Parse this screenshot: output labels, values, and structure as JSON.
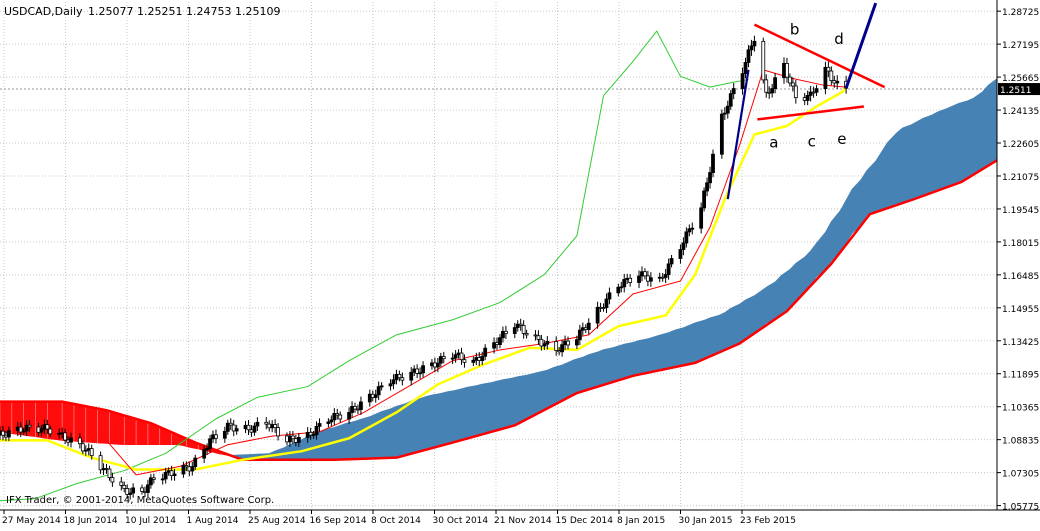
{
  "header": {
    "symbol": "USDCAD,Daily",
    "ohlc": "1.25077 1.25251 1.24753 1.25109"
  },
  "copyright": "IFX Trader, © 2001-2014, MetaQuotes Software Corp.",
  "colors": {
    "candle": "#000000",
    "kijun": "#ffff00",
    "tenkan": "#ff0000",
    "chikou": "#33cc33",
    "cloud_bull": "#4682b4",
    "cloud_bear": "#ff0000",
    "senkou_b": "#ff0000",
    "triangle": "#ff0000",
    "breakout": "#00008b",
    "axis_tag": "#000000"
  },
  "chart_data": {
    "type": "candlestick",
    "instrument": "USDCAD",
    "timeframe": "Daily",
    "last_price": 1.25109,
    "ylim": [
      1.0557,
      1.2915
    ],
    "y_ticks": [
      "1.28725",
      "1.27195",
      "1.25665",
      "1.24135",
      "1.22605",
      "1.21075",
      "1.19545",
      "1.18015",
      "1.16485",
      "1.14955",
      "1.13425",
      "1.11895",
      "1.10365",
      "1.08835",
      "1.07305",
      "1.05775"
    ],
    "x_ticks": [
      "27 May 2014",
      "18 Jun 2014",
      "10 Jul 2014",
      "1 Aug 2014",
      "25 Aug 2014",
      "16 Sep 2014",
      "8 Oct 2014",
      "30 Oct 2014",
      "21 Nov 2014",
      "15 Dec 2014",
      "8 Jan 2015",
      "30 Jan 2015",
      "23 Feb 2015"
    ],
    "x_range": [
      "2014-05-20",
      "2015-04-22"
    ],
    "close_path": [
      [
        "2014-05-20",
        1.0905
      ],
      [
        "2014-05-28",
        1.0935
      ],
      [
        "2014-06-05",
        1.0935
      ],
      [
        "2014-06-12",
        1.0885
      ],
      [
        "2014-06-18",
        1.084
      ],
      [
        "2014-06-25",
        1.073
      ],
      [
        "2014-07-01",
        1.0645
      ],
      [
        "2014-07-07",
        1.064
      ],
      [
        "2014-07-11",
        1.0705
      ],
      [
        "2014-07-17",
        1.073
      ],
      [
        "2014-07-24",
        1.076
      ],
      [
        "2014-07-30",
        1.088
      ],
      [
        "2014-08-05",
        1.0945
      ],
      [
        "2014-08-12",
        1.093
      ],
      [
        "2014-08-18",
        1.0965
      ],
      [
        "2014-08-25",
        1.088
      ],
      [
        "2014-09-01",
        1.09
      ],
      [
        "2014-09-08",
        1.098
      ],
      [
        "2014-09-15",
        1.101
      ],
      [
        "2014-09-22",
        1.108
      ],
      [
        "2014-09-29",
        1.116
      ],
      [
        "2014-10-06",
        1.119
      ],
      [
        "2014-10-13",
        1.123
      ],
      [
        "2014-10-20",
        1.128
      ],
      [
        "2014-10-27",
        1.124
      ],
      [
        "2014-11-03",
        1.133
      ],
      [
        "2014-11-10",
        1.142
      ],
      [
        "2014-11-17",
        1.135
      ],
      [
        "2014-11-24",
        1.13
      ],
      [
        "2014-12-01",
        1.136
      ],
      [
        "2014-12-08",
        1.148
      ],
      [
        "2014-12-15",
        1.16
      ],
      [
        "2014-12-22",
        1.165
      ],
      [
        "2014-12-29",
        1.162
      ],
      [
        "2015-01-05",
        1.178
      ],
      [
        "2015-01-12",
        1.196
      ],
      [
        "2015-01-19",
        1.238
      ],
      [
        "2015-01-26",
        1.26
      ],
      [
        "2015-01-30",
        1.275
      ],
      [
        "2015-02-03",
        1.248
      ],
      [
        "2015-02-09",
        1.262
      ],
      [
        "2015-02-13",
        1.247
      ],
      [
        "2015-02-18",
        1.248
      ],
      [
        "2015-02-23",
        1.26
      ],
      [
        "2015-02-27",
        1.253
      ],
      [
        "2015-03-02",
        1.2511
      ]
    ],
    "candle_range_pct": 0.0045,
    "tenkan_path": [
      [
        "2014-06-25",
        1.088
      ],
      [
        "2014-07-05",
        1.072
      ],
      [
        "2014-07-20",
        1.076
      ],
      [
        "2014-08-05",
        1.086
      ],
      [
        "2014-08-20",
        1.09
      ],
      [
        "2014-09-05",
        1.092
      ],
      [
        "2014-09-20",
        1.101
      ],
      [
        "2014-10-05",
        1.113
      ],
      [
        "2014-10-20",
        1.125
      ],
      [
        "2014-11-05",
        1.13
      ],
      [
        "2014-11-20",
        1.133
      ],
      [
        "2014-12-05",
        1.137
      ],
      [
        "2014-12-20",
        1.156
      ],
      [
        "2015-01-05",
        1.162
      ],
      [
        "2015-01-15",
        1.187
      ],
      [
        "2015-01-25",
        1.225
      ],
      [
        "2015-02-02",
        1.26
      ],
      [
        "2015-02-12",
        1.256
      ],
      [
        "2015-02-22",
        1.253
      ],
      [
        "2015-03-02",
        1.252
      ]
    ],
    "kijun_path": [
      [
        "2014-05-20",
        1.088
      ],
      [
        "2014-06-05",
        1.088
      ],
      [
        "2014-06-20",
        1.08
      ],
      [
        "2014-07-05",
        1.0745
      ],
      [
        "2014-07-25",
        1.0745
      ],
      [
        "2014-08-10",
        1.079
      ],
      [
        "2014-08-30",
        1.083
      ],
      [
        "2014-09-15",
        1.089
      ],
      [
        "2014-10-01",
        1.101
      ],
      [
        "2014-10-15",
        1.114
      ],
      [
        "2014-10-30",
        1.123
      ],
      [
        "2014-11-15",
        1.131
      ],
      [
        "2014-12-01",
        1.13
      ],
      [
        "2014-12-15",
        1.141
      ],
      [
        "2014-12-31",
        1.146
      ],
      [
        "2015-01-10",
        1.165
      ],
      [
        "2015-01-20",
        1.2
      ],
      [
        "2015-01-30",
        1.23
      ],
      [
        "2015-02-10",
        1.234
      ],
      [
        "2015-02-20",
        1.243
      ],
      [
        "2015-03-01",
        1.25
      ],
      [
        "2015-03-02",
        1.253
      ]
    ],
    "chikou_path": [
      [
        "2014-05-20",
        1.06
      ],
      [
        "2014-06-01",
        1.061
      ],
      [
        "2014-06-15",
        1.068
      ],
      [
        "2014-07-01",
        1.074
      ],
      [
        "2014-07-15",
        1.082
      ],
      [
        "2014-08-01",
        1.098
      ],
      [
        "2014-08-15",
        1.108
      ],
      [
        "2014-09-01",
        1.113
      ],
      [
        "2014-09-15",
        1.125
      ],
      [
        "2014-10-01",
        1.137
      ],
      [
        "2014-10-20",
        1.144
      ],
      [
        "2014-11-05",
        1.152
      ],
      [
        "2014-11-20",
        1.165
      ],
      [
        "2014-12-01",
        1.183
      ],
      [
        "2014-12-10",
        1.248
      ],
      [
        "2014-12-20",
        1.264
      ],
      [
        "2014-12-28",
        1.278
      ],
      [
        "2015-01-05",
        1.257
      ],
      [
        "2015-01-15",
        1.252
      ],
      [
        "2015-01-22",
        1.254
      ],
      [
        "2015-01-28",
        1.2555
      ]
    ],
    "senkou_a_path": [
      [
        "2014-05-20",
        1.092
      ],
      [
        "2014-06-10",
        1.088
      ],
      [
        "2014-07-01",
        1.086
      ],
      [
        "2014-07-20",
        1.086
      ],
      [
        "2014-08-05",
        1.081
      ],
      [
        "2014-08-20",
        1.082
      ],
      [
        "2014-09-05",
        1.092
      ],
      [
        "2014-09-20",
        1.098
      ],
      [
        "2014-10-10",
        1.108
      ],
      [
        "2014-10-30",
        1.114
      ],
      [
        "2014-11-20",
        1.12
      ],
      [
        "2014-12-10",
        1.13
      ],
      [
        "2014-12-30",
        1.137
      ],
      [
        "2015-01-20",
        1.147
      ],
      [
        "2015-02-05",
        1.16
      ],
      [
        "2015-02-20",
        1.178
      ],
      [
        "2015-03-05",
        1.205
      ],
      [
        "2015-03-20",
        1.232
      ],
      [
        "2015-04-05",
        1.242
      ],
      [
        "2015-04-15",
        1.247
      ],
      [
        "2015-04-22",
        1.256
      ]
    ],
    "senkou_b_path": [
      [
        "2014-05-20",
        1.106
      ],
      [
        "2014-06-10",
        1.106
      ],
      [
        "2014-06-25",
        1.102
      ],
      [
        "2014-07-10",
        1.096
      ],
      [
        "2014-07-25",
        1.087
      ],
      [
        "2014-08-10",
        1.079
      ],
      [
        "2014-08-25",
        1.079
      ],
      [
        "2014-09-10",
        1.079
      ],
      [
        "2014-10-01",
        1.08
      ],
      [
        "2014-10-20",
        1.087
      ],
      [
        "2014-11-10",
        1.095
      ],
      [
        "2014-12-01",
        1.11
      ],
      [
        "2014-12-20",
        1.118
      ],
      [
        "2015-01-10",
        1.124
      ],
      [
        "2015-01-25",
        1.133
      ],
      [
        "2015-02-10",
        1.148
      ],
      [
        "2015-02-25",
        1.17
      ],
      [
        "2015-03-10",
        1.193
      ],
      [
        "2015-03-25",
        1.2
      ],
      [
        "2015-04-10",
        1.208
      ],
      [
        "2015-04-22",
        1.218
      ]
    ],
    "triangle": {
      "upper": [
        [
          "2015-01-30",
          1.281
        ],
        [
          "2015-03-15",
          1.252
        ]
      ],
      "lower": [
        [
          "2015-01-31",
          1.237
        ],
        [
          "2015-03-08",
          1.243
        ]
      ],
      "breakout": [
        [
          "2015-03-02",
          1.2515
        ],
        [
          "2015-03-12",
          1.291
        ]
      ]
    },
    "wave_labels": [
      {
        "text": "a",
        "x": "2015-02-04",
        "y": 1.224
      },
      {
        "text": "b",
        "x": "2015-02-11",
        "y": 1.2765
      },
      {
        "text": "c",
        "x": "2015-02-17",
        "y": 1.2245
      },
      {
        "text": "d",
        "x": "2015-02-26",
        "y": 1.272
      },
      {
        "text": "e",
        "x": "2015-02-27",
        "y": 1.2255
      }
    ]
  }
}
